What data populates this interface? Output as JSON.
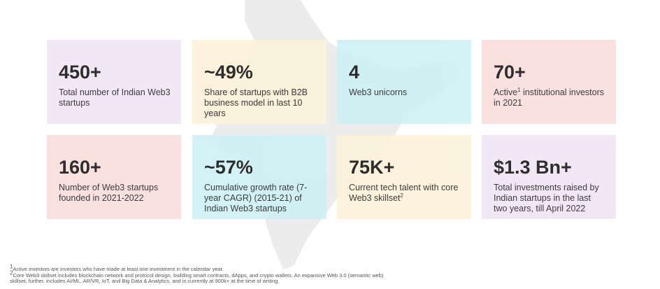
{
  "cards": [
    {
      "value": "450+",
      "description": [
        {
          "text": "Total number of Indian Web3 startups"
        }
      ],
      "color": "#f0e4f4"
    },
    {
      "value": "~49%",
      "description": [
        {
          "text": "Share of startups with B2B business model in last 10 years"
        }
      ],
      "color": "#fdf2d9"
    },
    {
      "value": "4",
      "description": [
        {
          "text": "Web3 unicorns"
        }
      ],
      "color": "#cdf1f5"
    },
    {
      "value": "70+",
      "description": [
        {
          "text": "Active"
        },
        {
          "sup": "1"
        },
        {
          "text": " institutional investors in 2021"
        }
      ],
      "color": "#fbdcdc"
    },
    {
      "value": "160+",
      "description": [
        {
          "text": "Number of Web3 startups founded in 2021-2022"
        }
      ],
      "color": "#fbdcdc"
    },
    {
      "value": "~57%",
      "description": [
        {
          "text": "Cumulative growth rate (7-year CAGR) (2015-21) of Indian Web3 startups"
        }
      ],
      "color": "#cdf1f5"
    },
    {
      "value": "75K+",
      "description": [
        {
          "text": "Current tech talent with core Web3 skillset"
        },
        {
          "sup": "2"
        }
      ],
      "color": "#fdf2d9"
    },
    {
      "value": "$1.3 Bn+",
      "description": [
        {
          "text": "Total investments raised by Indian startups in the last two years, till April 2022"
        }
      ],
      "color": "#f0e4f4"
    }
  ],
  "footnotes": [
    {
      "marker": "1",
      "text": "Active investors are investors who have made at least one investment in the calendar year."
    },
    {
      "marker": "2",
      "text": "Core Web3 skillset includes blockchain network and protocol design, building smart contracts, dApps, and crypto wallets. An expansive Web 3.0 (semantic web) skillset, further, includes AI/ML, AR/VR, IoT, and Big Data & Analytics, and is currently at 900k+ at the time of writing"
    }
  ]
}
